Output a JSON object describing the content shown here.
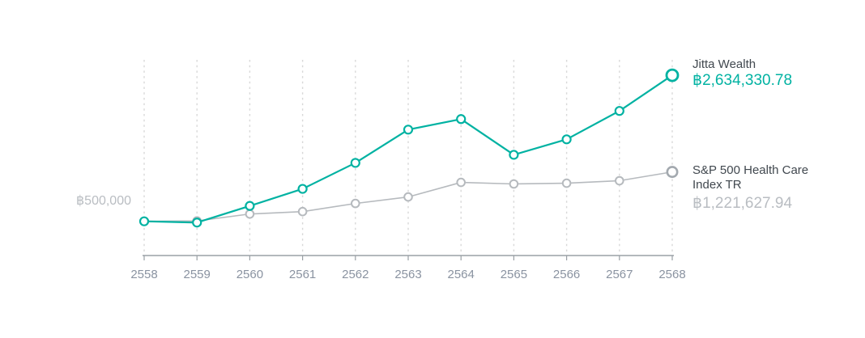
{
  "chart_data": {
    "type": "line",
    "title": "",
    "xlabel": "",
    "ylabel": "",
    "categories": [
      "2558",
      "2559",
      "2560",
      "2561",
      "2562",
      "2563",
      "2564",
      "2565",
      "2566",
      "2567",
      "2568"
    ],
    "series": [
      {
        "name": "Jitta Wealth",
        "color": "#00b2a2",
        "values": [
          500000,
          482000,
          725000,
          974000,
          1354000,
          1840000,
          1994000,
          1472000,
          1698000,
          2113000,
          2634330.78
        ],
        "final_value_label": "฿2,634,330.78"
      },
      {
        "name": "S&P 500 Health Care Index TR",
        "color": "#b6babe",
        "values": [
          500000,
          506000,
          607000,
          642000,
          761000,
          856000,
          1069000,
          1046000,
          1057000,
          1093000,
          1221627.94
        ],
        "final_value_label": "฿1,221,627.94"
      }
    ],
    "ylim": [
      0,
      2860000
    ],
    "grid": "vertical-dashed",
    "legend_position": "right-of-line-endpoints",
    "baseline": {
      "label": "฿500,000",
      "value": 500000
    }
  },
  "labels": {
    "baseline": "฿500,000",
    "jitta_name": "Jitta Wealth",
    "jitta_value": "฿2,634,330.78",
    "sp500_name_line1": "S&P 500 Health Care",
    "sp500_name_line2": "Index TR",
    "sp500_value": "฿1,221,627.94"
  },
  "colors": {
    "jitta": "#00b2a2",
    "sp500": "#b6babe",
    "sp500_end_marker": "#a3a9af",
    "axis": "#9aa0a5",
    "gridline": "#d8d8d8",
    "tick_label": "#8a93a1",
    "dark_text": "#41484f",
    "light_text": "#b9bdc2"
  }
}
